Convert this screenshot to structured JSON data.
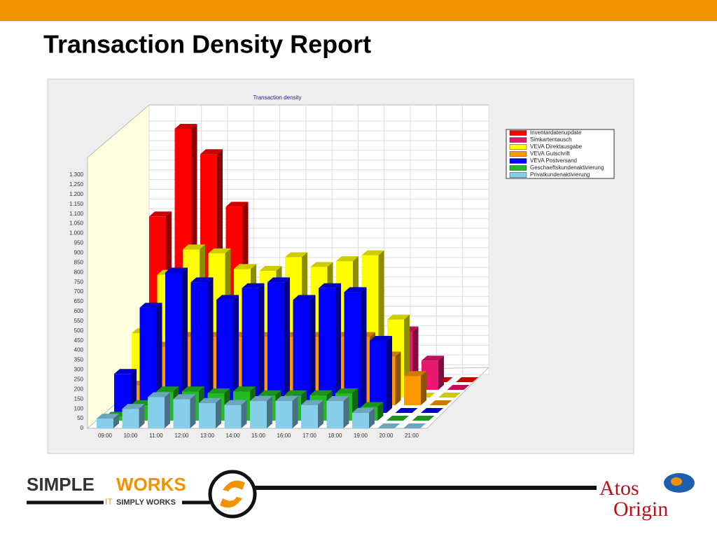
{
  "slide_title": "Transaction Density Report",
  "logos": {
    "simple": "SIMPLE",
    "works": "WORKS",
    "it": "IT",
    "tagline": "SIMPLY WORKS",
    "atos": "Atos",
    "origin": "Origin"
  },
  "chart_data": {
    "type": "bar3d",
    "title": "Transaction density",
    "categories": [
      "09:00",
      "10:00",
      "11:00",
      "12:00",
      "13:00",
      "14:00",
      "15:00",
      "16:00",
      "17:00",
      "18:00",
      "19:00",
      "20:00",
      "21:00"
    ],
    "series": [
      {
        "name": "Inventardatenupdate",
        "color": "#ff0000",
        "values": [
          850,
          1300,
          1170,
          900,
          0,
          0,
          0,
          0,
          0,
          0,
          0,
          0,
          0
        ]
      },
      {
        "name": "Simkartentausch",
        "color": "#e8176f",
        "values": [
          0,
          0,
          0,
          0,
          0,
          0,
          0,
          0,
          0,
          0,
          300,
          150,
          0
        ]
      },
      {
        "name": "VEVA Direktausgabe",
        "color": "#ffff00",
        "values": [
          330,
          630,
          760,
          740,
          660,
          650,
          720,
          670,
          700,
          730,
          400,
          0,
          0
        ]
      },
      {
        "name": "VEVA Gutschrift",
        "color": "#ff9900",
        "values": [
          100,
          300,
          350,
          350,
          350,
          350,
          350,
          350,
          350,
          350,
          250,
          150,
          0
        ]
      },
      {
        "name": "VEVA Postversand",
        "color": "#0000ff",
        "values": [
          200,
          540,
          720,
          670,
          580,
          640,
          670,
          580,
          640,
          620,
          370,
          0,
          0
        ]
      },
      {
        "name": "Geschaeftskundenaktivierung",
        "color": "#22bb22",
        "values": [
          20,
          80,
          150,
          150,
          140,
          150,
          130,
          130,
          130,
          140,
          70,
          0,
          0
        ]
      },
      {
        "name": "Privatkundenaktivierung",
        "color": "#87ceeb",
        "values": [
          50,
          100,
          160,
          150,
          130,
          120,
          140,
          140,
          120,
          140,
          80,
          0,
          0
        ]
      }
    ],
    "ylim": [
      0,
      1300
    ],
    "yticks": [
      0,
      50,
      100,
      150,
      200,
      250,
      300,
      350,
      400,
      450,
      500,
      550,
      600,
      650,
      700,
      750,
      800,
      850,
      900,
      950,
      {
        "value": 1000,
        "label": "1.000"
      },
      {
        "value": 1050,
        "label": "1.050"
      },
      {
        "value": 1100,
        "label": "1.100"
      },
      {
        "value": 1150,
        "label": "1.150"
      },
      {
        "value": 1200,
        "label": "1.200"
      },
      {
        "value": 1250,
        "label": "1.250"
      },
      {
        "value": 1300,
        "label": "1.300"
      }
    ],
    "grid": true,
    "legend": "top-right"
  }
}
